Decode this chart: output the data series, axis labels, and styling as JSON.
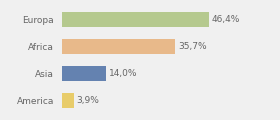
{
  "categories": [
    "Europa",
    "Africa",
    "Asia",
    "America"
  ],
  "values": [
    46.4,
    35.7,
    14.0,
    3.9
  ],
  "labels": [
    "46,4%",
    "35,7%",
    "14,0%",
    "3,9%"
  ],
  "bar_colors": [
    "#b5c98e",
    "#e8b98a",
    "#6482b0",
    "#e8cc6a"
  ],
  "background_color": "#f0f0f0",
  "xlim": [
    0,
    58
  ],
  "figsize": [
    2.8,
    1.2
  ],
  "dpi": 100,
  "bar_height": 0.55,
  "label_fontsize": 6.5,
  "ytick_fontsize": 6.5,
  "label_color": "#666666",
  "ytick_color": "#666666"
}
